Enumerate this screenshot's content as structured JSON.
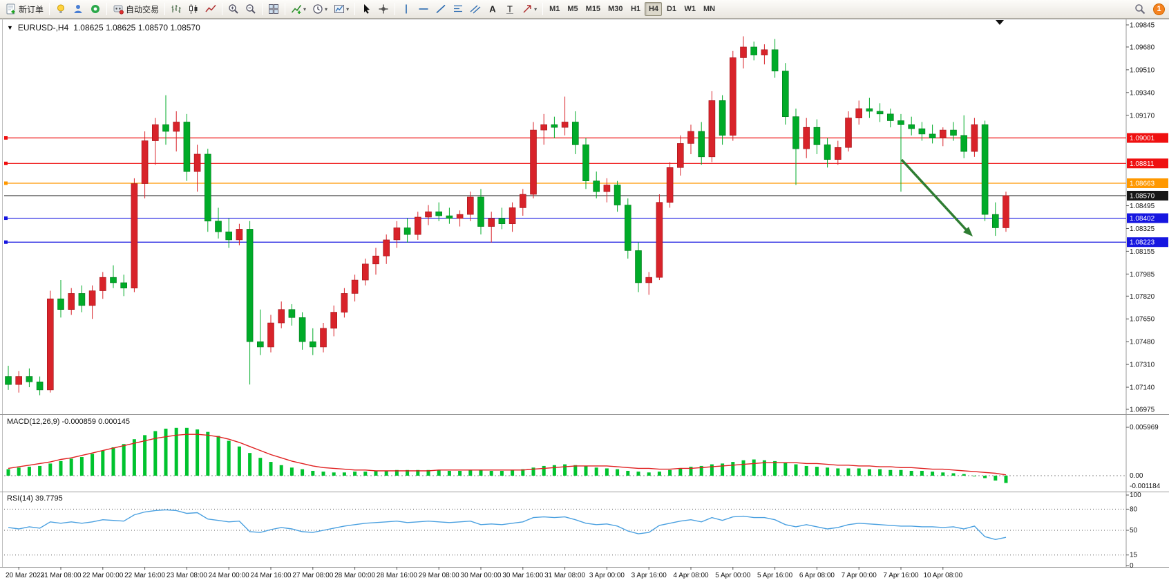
{
  "toolbar": {
    "new_order_label": "新订单",
    "autotrading_label": "自动交易",
    "timeframes": [
      "M1",
      "M5",
      "M15",
      "M30",
      "H1",
      "H4",
      "D1",
      "W1",
      "MN"
    ],
    "active_timeframe": "H4",
    "notification_count": "1"
  },
  "chart_header": {
    "expander": "▼",
    "title": "EURUSD-,H4",
    "quotes": "1.08625 1.08625 1.08570 1.08570"
  },
  "panels": {
    "macd_label": "MACD(12,26,9)",
    "macd_values": "-0.000859 0.000145",
    "rsi_label": "RSI(14)",
    "rsi_value": "39.7795"
  },
  "chart_data": {
    "type": "candlestick",
    "symbol": "EURUSD-",
    "timeframe": "H4",
    "price_range": [
      1.06975,
      1.09845
    ],
    "axis_ticks": [
      "1.09845",
      "1.09680",
      "1.09510",
      "1.09340",
      "1.09170",
      "1.08495",
      "1.08325",
      "1.08155",
      "1.07985",
      "1.07820",
      "1.07650",
      "1.07480",
      "1.07310",
      "1.07140",
      "1.06975"
    ],
    "hlines": [
      {
        "price": 1.09001,
        "color": "#ef1010",
        "label": "1.09001"
      },
      {
        "price": 1.08811,
        "color": "#ef1010",
        "label": "1.08811"
      },
      {
        "price": 1.08663,
        "color": "#ff9800",
        "label": "1.08663"
      },
      {
        "price": 1.0857,
        "color": "#171717",
        "label": "1.08570",
        "current": true
      },
      {
        "price": 1.08402,
        "color": "#1616e0",
        "label": "1.08402"
      },
      {
        "price": 1.08223,
        "color": "#1616e0",
        "label": "1.08223"
      }
    ],
    "time_labels": [
      "20 Mar 2023",
      "21 Mar 08:00",
      "22 Mar 00:00",
      "22 Mar 16:00",
      "23 Mar 08:00",
      "24 Mar 00:00",
      "24 Mar 16:00",
      "27 Mar 08:00",
      "28 Mar 00:00",
      "28 Mar 16:00",
      "29 Mar 08:00",
      "30 Mar 00:00",
      "30 Mar 16:00",
      "31 Mar 08:00",
      "3 Apr 00:00",
      "3 Apr 16:00",
      "4 Apr 08:00",
      "5 Apr 00:00",
      "5 Apr 16:00",
      "6 Apr 08:00",
      "7 Apr 00:00",
      "7 Apr 16:00",
      "10 Apr 08:00"
    ],
    "candles": [
      [
        1.0722,
        1.073,
        1.0712,
        1.0716
      ],
      [
        1.0716,
        1.0726,
        1.071,
        1.0722
      ],
      [
        1.0722,
        1.0728,
        1.0714,
        1.0718
      ],
      [
        1.0718,
        1.0722,
        1.0708,
        1.0712
      ],
      [
        1.0712,
        1.0786,
        1.071,
        1.078
      ],
      [
        1.078,
        1.0794,
        1.0766,
        1.0772
      ],
      [
        1.0772,
        1.0788,
        1.0768,
        1.0784
      ],
      [
        1.0784,
        1.079,
        1.077,
        1.0775
      ],
      [
        1.0775,
        1.079,
        1.0765,
        1.0786
      ],
      [
        1.0786,
        1.08,
        1.078,
        1.0796
      ],
      [
        1.0796,
        1.0805,
        1.0788,
        1.0792
      ],
      [
        1.0792,
        1.0798,
        1.0782,
        1.0788
      ],
      [
        1.0788,
        1.087,
        1.0785,
        1.0866
      ],
      [
        1.0866,
        1.0905,
        1.0855,
        1.0898
      ],
      [
        1.0898,
        1.0915,
        1.088,
        1.091
      ],
      [
        1.091,
        1.0932,
        1.0895,
        1.0905
      ],
      [
        1.0905,
        1.092,
        1.089,
        1.0912
      ],
      [
        1.0912,
        1.0918,
        1.0868,
        1.0875
      ],
      [
        1.0875,
        1.0895,
        1.086,
        1.0888
      ],
      [
        1.0888,
        1.0892,
        1.083,
        1.0838
      ],
      [
        1.0838,
        1.0848,
        1.0825,
        1.083
      ],
      [
        1.083,
        1.084,
        1.0818,
        1.0824
      ],
      [
        1.0824,
        1.0836,
        1.082,
        1.0832
      ],
      [
        1.0832,
        1.0838,
        1.0716,
        1.0748
      ],
      [
        1.0748,
        1.0772,
        1.0738,
        1.0744
      ],
      [
        1.0744,
        1.0768,
        1.074,
        1.0762
      ],
      [
        1.0762,
        1.0778,
        1.0758,
        1.0772
      ],
      [
        1.0772,
        1.0776,
        1.076,
        1.0766
      ],
      [
        1.0766,
        1.077,
        1.0742,
        1.0748
      ],
      [
        1.0748,
        1.0758,
        1.0738,
        1.0744
      ],
      [
        1.0744,
        1.0762,
        1.074,
        1.0758
      ],
      [
        1.0758,
        1.0775,
        1.0752,
        1.077
      ],
      [
        1.077,
        1.0788,
        1.0766,
        1.0784
      ],
      [
        1.0784,
        1.0798,
        1.0778,
        1.0794
      ],
      [
        1.0794,
        1.081,
        1.079,
        1.0806
      ],
      [
        1.0806,
        1.0818,
        1.0798,
        1.0812
      ],
      [
        1.0812,
        1.0828,
        1.0806,
        1.0824
      ],
      [
        1.0824,
        1.0838,
        1.0818,
        1.0833
      ],
      [
        1.0833,
        1.084,
        1.0822,
        1.0828
      ],
      [
        1.0828,
        1.0845,
        1.0824,
        1.0841
      ],
      [
        1.0841,
        1.085,
        1.0835,
        1.0845
      ],
      [
        1.0845,
        1.0852,
        1.0838,
        1.0842
      ],
      [
        1.0842,
        1.0848,
        1.0836,
        1.084
      ],
      [
        1.084,
        1.0846,
        1.0834,
        1.0843
      ],
      [
        1.0843,
        1.086,
        1.0838,
        1.0856
      ],
      [
        1.0856,
        1.0862,
        1.0828,
        1.0834
      ],
      [
        1.0834,
        1.0845,
        1.0822,
        1.084
      ],
      [
        1.084,
        1.0848,
        1.0832,
        1.0836
      ],
      [
        1.0836,
        1.0852,
        1.083,
        1.0848
      ],
      [
        1.0848,
        1.0862,
        1.0842,
        1.0858
      ],
      [
        1.0858,
        1.0912,
        1.0855,
        1.0906
      ],
      [
        1.0906,
        1.0918,
        1.0895,
        1.091
      ],
      [
        1.091,
        1.0916,
        1.09,
        1.0908
      ],
      [
        1.0908,
        1.0931,
        1.0902,
        1.0912
      ],
      [
        1.0912,
        1.092,
        1.0888,
        1.0895
      ],
      [
        1.0895,
        1.09,
        1.0862,
        1.0868
      ],
      [
        1.0868,
        1.0875,
        1.0855,
        1.086
      ],
      [
        1.086,
        1.087,
        1.0852,
        1.0865
      ],
      [
        1.0865,
        1.0868,
        1.0845,
        1.085
      ],
      [
        1.085,
        1.0855,
        1.081,
        1.0816
      ],
      [
        1.0816,
        1.0822,
        1.0785,
        1.0792
      ],
      [
        1.0792,
        1.08,
        1.0783,
        1.0796
      ],
      [
        1.0796,
        1.0858,
        1.0794,
        1.0852
      ],
      [
        1.0852,
        1.0882,
        1.0848,
        1.0878
      ],
      [
        1.0878,
        1.0902,
        1.0872,
        1.0896
      ],
      [
        1.0896,
        1.091,
        1.0888,
        1.0905
      ],
      [
        1.0905,
        1.0912,
        1.088,
        1.0886
      ],
      [
        1.0886,
        1.0935,
        1.0882,
        1.0928
      ],
      [
        1.0928,
        1.0932,
        1.0895,
        1.0902
      ],
      [
        1.0902,
        1.0965,
        1.0898,
        1.096
      ],
      [
        1.096,
        1.0976,
        1.0952,
        1.0968
      ],
      [
        1.0968,
        1.0972,
        1.0958,
        1.0962
      ],
      [
        1.0962,
        1.097,
        1.0955,
        1.0966
      ],
      [
        1.0966,
        1.0974,
        1.0945,
        1.095
      ],
      [
        1.095,
        1.0956,
        1.091,
        1.0916
      ],
      [
        1.0916,
        1.0922,
        1.0865,
        1.0892
      ],
      [
        1.0892,
        1.0915,
        1.0885,
        1.0908
      ],
      [
        1.0908,
        1.0914,
        1.0888,
        1.0895
      ],
      [
        1.0895,
        1.09,
        1.0878,
        1.0884
      ],
      [
        1.0884,
        1.0898,
        1.088,
        1.0893
      ],
      [
        1.0893,
        1.092,
        1.089,
        1.0915
      ],
      [
        1.0915,
        1.0928,
        1.091,
        1.0922
      ],
      [
        1.0922,
        1.093,
        1.0915,
        1.092
      ],
      [
        1.092,
        1.0926,
        1.0912,
        1.0918
      ],
      [
        1.0918,
        1.0922,
        1.0908,
        1.0913
      ],
      [
        1.0913,
        1.0918,
        1.086,
        1.091
      ],
      [
        1.091,
        1.0916,
        1.0902,
        1.0907
      ],
      [
        1.0907,
        1.0912,
        1.0898,
        1.0903
      ],
      [
        1.0903,
        1.091,
        1.0896,
        1.09
      ],
      [
        1.09,
        1.0908,
        1.0894,
        1.0906
      ],
      [
        1.0906,
        1.0912,
        1.0898,
        1.0902
      ],
      [
        1.0902,
        1.0917,
        1.0885,
        1.089
      ],
      [
        1.089,
        1.0915,
        1.0886,
        1.091
      ],
      [
        1.091,
        1.0913,
        1.0838,
        1.0843
      ],
      [
        1.0843,
        1.0852,
        1.0827,
        1.0833
      ],
      [
        1.0833,
        1.086,
        1.083,
        1.0857
      ]
    ],
    "macd": {
      "axis_max": "0.005969",
      "axis_zero": "0.00",
      "axis_min": "-0.001184",
      "hist": [
        0.0008,
        0.001,
        0.0011,
        0.0012,
        0.0015,
        0.0018,
        0.0021,
        0.0023,
        0.0027,
        0.0031,
        0.0035,
        0.0039,
        0.0045,
        0.005,
        0.0055,
        0.0058,
        0.0059,
        0.0059,
        0.0057,
        0.0054,
        0.0049,
        0.0043,
        0.0036,
        0.0028,
        0.0022,
        0.0017,
        0.0013,
        0.001,
        0.0008,
        0.0006,
        0.0005,
        0.0004,
        0.0004,
        0.0005,
        0.0005,
        0.0006,
        0.0006,
        0.0007,
        0.0007,
        0.0007,
        0.0007,
        0.0007,
        0.0006,
        0.0006,
        0.0007,
        0.0007,
        0.0006,
        0.0006,
        0.0007,
        0.0008,
        0.001,
        0.0012,
        0.0013,
        0.0014,
        0.0013,
        0.0012,
        0.001,
        0.0009,
        0.0008,
        0.0006,
        0.0005,
        0.0004,
        0.0005,
        0.0007,
        0.0009,
        0.0011,
        0.0012,
        0.0014,
        0.0015,
        0.0017,
        0.0019,
        0.002,
        0.0019,
        0.0018,
        0.0016,
        0.0014,
        0.0012,
        0.0011,
        0.001,
        0.0009,
        0.0009,
        0.0009,
        0.0008,
        0.0008,
        0.0007,
        0.0007,
        0.0006,
        0.0006,
        0.0005,
        0.0004,
        0.0003,
        0.0002,
        0.0,
        -0.0003,
        -0.0006,
        -0.0009
      ],
      "signal": [
        0.0009,
        0.0011,
        0.0013,
        0.0015,
        0.0017,
        0.002,
        0.0022,
        0.0025,
        0.0028,
        0.0031,
        0.0034,
        0.0037,
        0.004,
        0.0043,
        0.0046,
        0.0048,
        0.005,
        0.0051,
        0.0051,
        0.005,
        0.0048,
        0.0045,
        0.0041,
        0.0036,
        0.0031,
        0.0026,
        0.0022,
        0.0018,
        0.0015,
        0.0012,
        0.001,
        0.0009,
        0.0008,
        0.0007,
        0.0007,
        0.0006,
        0.0006,
        0.0006,
        0.0006,
        0.0006,
        0.0006,
        0.0007,
        0.0007,
        0.0007,
        0.0007,
        0.0007,
        0.0007,
        0.0007,
        0.0007,
        0.0007,
        0.0008,
        0.0009,
        0.001,
        0.0011,
        0.0012,
        0.0012,
        0.0012,
        0.0012,
        0.0011,
        0.001,
        0.0009,
        0.0009,
        0.0008,
        0.0008,
        0.0009,
        0.0009,
        0.001,
        0.0011,
        0.0012,
        0.0013,
        0.0014,
        0.0015,
        0.0016,
        0.0016,
        0.0016,
        0.0016,
        0.0015,
        0.0015,
        0.0014,
        0.0013,
        0.0013,
        0.0012,
        0.0012,
        0.0011,
        0.0011,
        0.001,
        0.001,
        0.0009,
        0.0008,
        0.0008,
        0.0007,
        0.0006,
        0.0005,
        0.0004,
        0.0003,
        0.0001
      ]
    },
    "rsi": {
      "levels": [
        80,
        50,
        15
      ],
      "axis_labels": [
        "100",
        "80",
        "50",
        "15",
        "0"
      ],
      "values": [
        54,
        52,
        55,
        53,
        62,
        60,
        62,
        60,
        62,
        65,
        64,
        63,
        72,
        76,
        78,
        79,
        78,
        74,
        75,
        66,
        64,
        62,
        63,
        48,
        47,
        51,
        54,
        52,
        48,
        47,
        50,
        53,
        56,
        58,
        60,
        61,
        62,
        63,
        61,
        62,
        63,
        62,
        61,
        62,
        63,
        58,
        59,
        58,
        60,
        62,
        68,
        69,
        68,
        69,
        65,
        60,
        58,
        59,
        56,
        49,
        45,
        47,
        57,
        60,
        63,
        65,
        62,
        68,
        64,
        69,
        70,
        68,
        68,
        65,
        58,
        55,
        58,
        55,
        52,
        54,
        58,
        60,
        59,
        58,
        57,
        56,
        56,
        55,
        55,
        54,
        55,
        52,
        56,
        41,
        37,
        40
      ]
    },
    "annotation_arrow": {
      "color": "#2e7d32",
      "direction": "down-right"
    }
  }
}
